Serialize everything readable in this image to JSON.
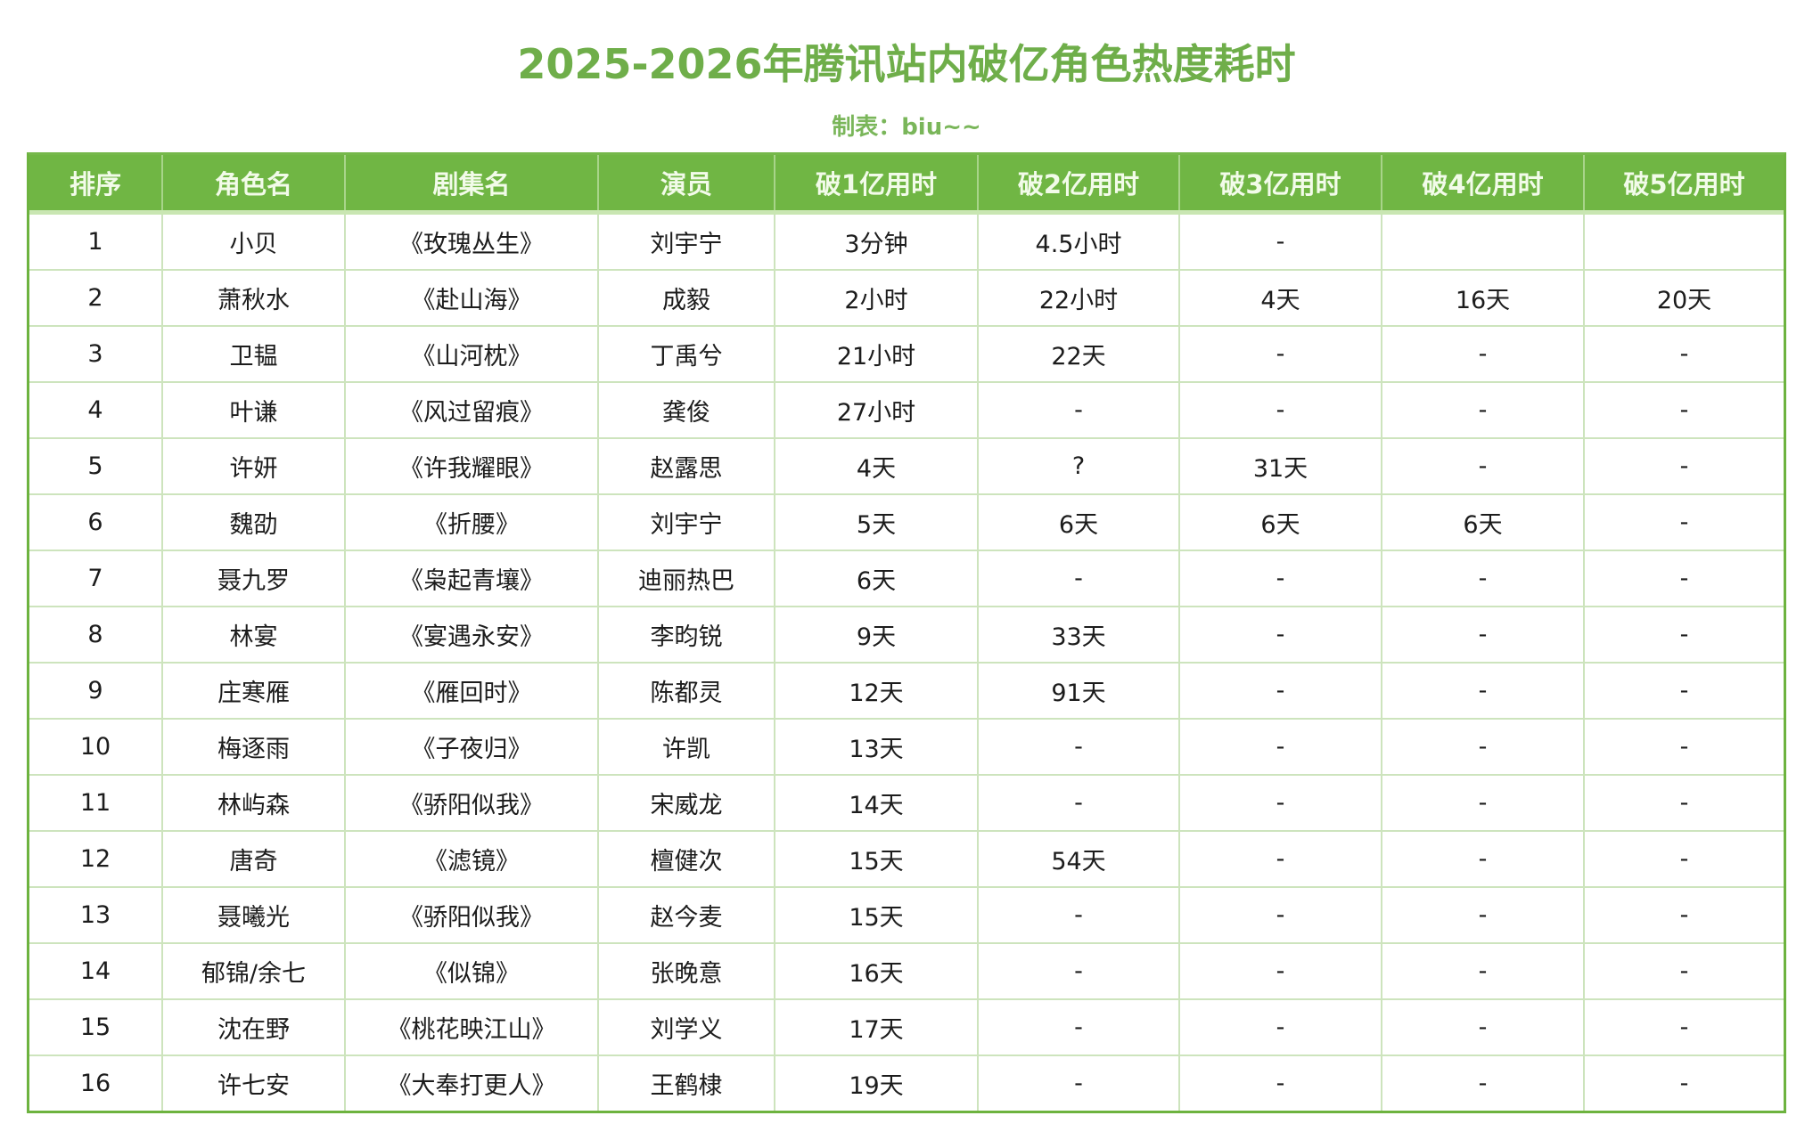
{
  "title": "2025-2026年腾讯站内破亿角色热度耗时",
  "subtitle": "制表：biu~~",
  "colors": {
    "accent": "#70b644",
    "title": "#6fae4a",
    "grid": "#cde4bd"
  },
  "table": {
    "headers": [
      "排序",
      "角色名",
      "剧集名",
      "演员",
      "破1亿用时",
      "破2亿用时",
      "破3亿用时",
      "破4亿用时",
      "破5亿用时"
    ],
    "rows": [
      [
        "1",
        "小贝",
        "《玫瑰丛生》",
        "刘宇宁",
        "3分钟",
        "4.5小时",
        "-",
        "",
        ""
      ],
      [
        "2",
        "萧秋水",
        "《赴山海》",
        "成毅",
        "2小时",
        "22小时",
        "4天",
        "16天",
        "20天"
      ],
      [
        "3",
        "卫韫",
        "《山河枕》",
        "丁禹兮",
        "21小时",
        "22天",
        "-",
        "-",
        "-"
      ],
      [
        "4",
        "叶谦",
        "《风过留痕》",
        "龚俊",
        "27小时",
        "-",
        "-",
        "-",
        "-"
      ],
      [
        "5",
        "许妍",
        "《许我耀眼》",
        "赵露思",
        "4天",
        "?",
        "31天",
        "-",
        "-"
      ],
      [
        "6",
        "魏劭",
        "《折腰》",
        "刘宇宁",
        "5天",
        "6天",
        "6天",
        "6天",
        "-"
      ],
      [
        "7",
        "聂九罗",
        "《枭起青壤》",
        "迪丽热巴",
        "6天",
        "-",
        "-",
        "-",
        "-"
      ],
      [
        "8",
        "林宴",
        "《宴遇永安》",
        "李昀锐",
        "9天",
        "33天",
        "-",
        "-",
        "-"
      ],
      [
        "9",
        "庄寒雁",
        "《雁回时》",
        "陈都灵",
        "12天",
        "91天",
        "-",
        "-",
        "-"
      ],
      [
        "10",
        "梅逐雨",
        "《子夜归》",
        "许凯",
        "13天",
        "-",
        "-",
        "-",
        "-"
      ],
      [
        "11",
        "林屿森",
        "《骄阳似我》",
        "宋威龙",
        "14天",
        "-",
        "-",
        "-",
        "-"
      ],
      [
        "12",
        "唐奇",
        "《滤镜》",
        "檀健次",
        "15天",
        "54天",
        "-",
        "-",
        "-"
      ],
      [
        "13",
        "聂曦光",
        "《骄阳似我》",
        "赵今麦",
        "15天",
        "-",
        "-",
        "-",
        "-"
      ],
      [
        "14",
        "郁锦/余七",
        "《似锦》",
        "张晚意",
        "16天",
        "-",
        "-",
        "-",
        "-"
      ],
      [
        "15",
        "沈在野",
        "《桃花映江山》",
        "刘学义",
        "17天",
        "-",
        "-",
        "-",
        "-"
      ],
      [
        "16",
        "许七安",
        "《大奉打更人》",
        "王鹤棣",
        "19天",
        "-",
        "-",
        "-",
        "-"
      ]
    ]
  }
}
